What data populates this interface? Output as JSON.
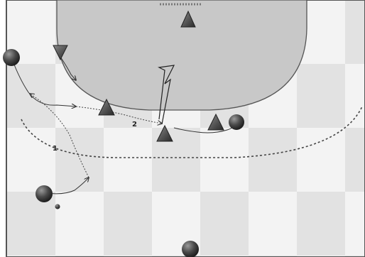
{
  "diagram": {
    "labels": {
      "pass_1": "1",
      "pass_2": "2"
    },
    "colors": {
      "court_area": "#c8c8c8",
      "court_line": "#5a5a5a",
      "grid_a": "#f3f3f3",
      "grid_b": "#e2e2e2",
      "defender_fill": "#5c5c5c",
      "player_fill": "#4a4a4a"
    },
    "legend": {
      "defender_marker": "triangle-icon",
      "attacker_marker": "circle-icon",
      "ball_marker": "ball-icon"
    }
  }
}
